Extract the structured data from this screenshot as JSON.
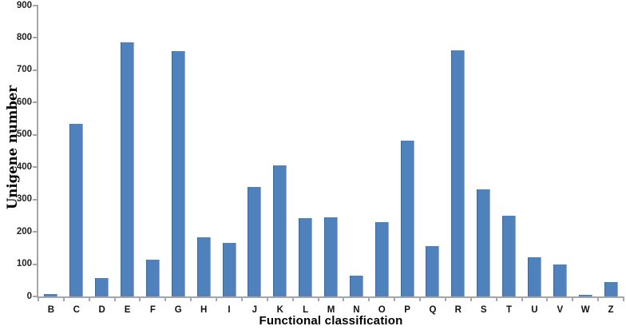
{
  "chart_data": {
    "type": "bar",
    "title": "",
    "xlabel": "Functional classification",
    "ylabel": "Unigene number",
    "categories": [
      "B",
      "C",
      "D",
      "E",
      "F",
      "G",
      "H",
      "I",
      "J",
      "K",
      "L",
      "M",
      "N",
      "O",
      "P",
      "Q",
      "R",
      "S",
      "T",
      "U",
      "V",
      "W",
      "Z"
    ],
    "values": [
      8,
      533,
      58,
      787,
      113,
      759,
      183,
      166,
      338,
      405,
      243,
      246,
      64,
      229,
      481,
      156,
      761,
      332,
      250,
      121,
      100,
      4,
      44
    ],
    "ylim": [
      0,
      900
    ],
    "ytick_step": 100,
    "grid": false,
    "legend": false,
    "colors": {
      "bar_fill": "#4f81bd",
      "bar_edge_dark": "#3d6899",
      "bar_edge_light": "#8cb0d9",
      "axis": "#a6a6a6",
      "tick_text": "#222222",
      "label_text": "#000000"
    }
  }
}
